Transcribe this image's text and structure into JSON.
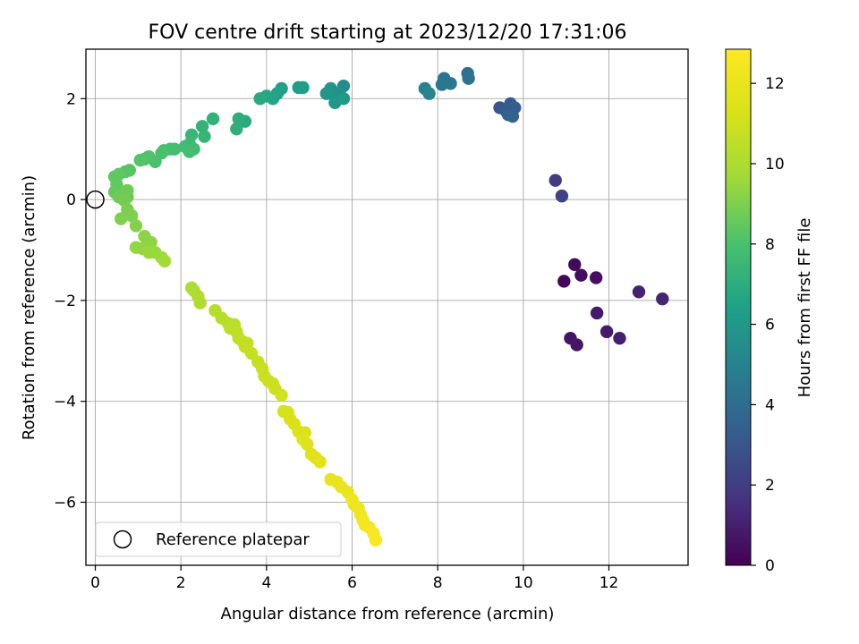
{
  "chart_data": {
    "type": "scatter",
    "title": "FOV centre drift starting at 2023/12/20 17:31:06",
    "xlabel": "Angular distance from reference (arcmin)",
    "ylabel": "Rotation from reference (arcmin)",
    "xlim": [
      -0.22,
      13.85
    ],
    "ylim": [
      -7.25,
      2.98
    ],
    "x_ticks": [
      0,
      2,
      4,
      6,
      8,
      10,
      12
    ],
    "y_ticks": [
      -6,
      -4,
      -2,
      0,
      2
    ],
    "x_tick_labels": [
      "0",
      "2",
      "4",
      "6",
      "8",
      "10",
      "12"
    ],
    "y_tick_labels": [
      "−6",
      "−4",
      "−2",
      "0",
      "2"
    ],
    "grid": true,
    "colorbar": {
      "label": "Hours from first FF file",
      "min": 0,
      "max": 12.85,
      "ticks": [
        0,
        2,
        4,
        6,
        8,
        10,
        12
      ],
      "tick_labels": [
        "0",
        "2",
        "4",
        "6",
        "8",
        "10",
        "12"
      ],
      "colormap": "viridis"
    },
    "legend": {
      "placement": "lower-left",
      "entries": [
        {
          "label": "Reference platepar",
          "marker": "open-circle"
        }
      ]
    },
    "reference_point": {
      "x": 0,
      "y": 0
    },
    "points": [
      [
        11.2,
        -1.29,
        0.3
      ],
      [
        10.95,
        -1.62,
        0.2
      ],
      [
        11.35,
        -1.5,
        0.4
      ],
      [
        11.7,
        -1.55,
        0.5
      ],
      [
        11.1,
        -2.75,
        0.6
      ],
      [
        11.25,
        -2.88,
        0.7
      ],
      [
        11.72,
        -2.25,
        0.8
      ],
      [
        11.95,
        -2.62,
        0.9
      ],
      [
        12.25,
        -2.75,
        1.0
      ],
      [
        12.7,
        -1.83,
        1.1
      ],
      [
        13.25,
        -1.97,
        1.2
      ],
      [
        10.75,
        0.38,
        2.0
      ],
      [
        10.9,
        0.07,
        2.2
      ],
      [
        9.45,
        1.82,
        3.0
      ],
      [
        9.6,
        1.75,
        3.1
      ],
      [
        9.7,
        1.9,
        3.2
      ],
      [
        9.8,
        1.82,
        3.3
      ],
      [
        9.65,
        1.68,
        3.4
      ],
      [
        9.75,
        1.65,
        3.5
      ],
      [
        8.7,
        2.5,
        4.1
      ],
      [
        8.72,
        2.4,
        4.2
      ],
      [
        8.15,
        2.4,
        4.3
      ],
      [
        8.3,
        2.3,
        4.4
      ],
      [
        8.1,
        2.28,
        4.5
      ],
      [
        7.7,
        2.2,
        5.0
      ],
      [
        7.8,
        2.1,
        5.1
      ],
      [
        5.8,
        2.25,
        5.5
      ],
      [
        5.7,
        2.1,
        5.6
      ],
      [
        5.55,
        2.1,
        5.7
      ],
      [
        5.5,
        2.2,
        5.8
      ],
      [
        5.4,
        2.1,
        5.9
      ],
      [
        5.6,
        1.92,
        6.0
      ],
      [
        5.8,
        2.0,
        6.1
      ],
      [
        4.75,
        2.22,
        6.2
      ],
      [
        4.85,
        2.22,
        6.3
      ],
      [
        4.35,
        2.2,
        6.4
      ],
      [
        4.25,
        2.1,
        6.5
      ],
      [
        4.15,
        2.0,
        6.6
      ],
      [
        4.0,
        2.05,
        6.7
      ],
      [
        3.85,
        2.0,
        6.8
      ],
      [
        3.5,
        1.55,
        6.9
      ],
      [
        3.35,
        1.6,
        7.0
      ],
      [
        3.3,
        1.4,
        7.1
      ],
      [
        2.75,
        1.6,
        7.2
      ],
      [
        2.5,
        1.45,
        7.3
      ],
      [
        2.55,
        1.25,
        7.4
      ],
      [
        2.25,
        1.28,
        7.5
      ],
      [
        2.2,
        1.1,
        7.6
      ],
      [
        2.3,
        1.0,
        7.7
      ],
      [
        2.1,
        1.05,
        7.7
      ],
      [
        2.2,
        0.95,
        7.8
      ],
      [
        1.85,
        1.0,
        7.8
      ],
      [
        1.75,
        1.0,
        7.9
      ],
      [
        1.6,
        0.97,
        7.9
      ],
      [
        1.55,
        0.92,
        8.0
      ],
      [
        1.4,
        0.75,
        8.0
      ],
      [
        1.25,
        0.85,
        8.1
      ],
      [
        1.15,
        0.8,
        8.1
      ],
      [
        1.05,
        0.78,
        8.2
      ],
      [
        0.8,
        0.58,
        8.3
      ],
      [
        0.7,
        0.55,
        8.3
      ],
      [
        0.55,
        0.5,
        8.4
      ],
      [
        0.45,
        0.45,
        8.4
      ],
      [
        0.5,
        0.3,
        8.5
      ],
      [
        0.45,
        0.15,
        8.5
      ],
      [
        0.6,
        0.08,
        8.6
      ],
      [
        0.75,
        0.05,
        8.6
      ],
      [
        0.75,
        0.18,
        8.7
      ],
      [
        0.55,
        0.05,
        8.7
      ],
      [
        0.68,
        -0.02,
        8.8
      ],
      [
        0.75,
        -0.2,
        8.9
      ],
      [
        0.85,
        -0.32,
        9.0
      ],
      [
        0.6,
        -0.38,
        9.0
      ],
      [
        0.95,
        -0.52,
        9.1
      ],
      [
        1.15,
        -0.73,
        9.2
      ],
      [
        1.3,
        -0.85,
        9.3
      ],
      [
        0.95,
        -0.95,
        9.4
      ],
      [
        1.1,
        -0.97,
        9.4
      ],
      [
        1.25,
        -1.05,
        9.5
      ],
      [
        1.4,
        -1.05,
        9.5
      ],
      [
        1.55,
        -1.15,
        9.6
      ],
      [
        1.62,
        -1.22,
        9.7
      ],
      [
        2.25,
        -1.75,
        10.0
      ],
      [
        2.3,
        -1.8,
        10.0
      ],
      [
        2.4,
        -1.92,
        10.1
      ],
      [
        2.45,
        -2.05,
        10.1
      ],
      [
        2.8,
        -2.2,
        10.2
      ],
      [
        2.95,
        -2.35,
        10.3
      ],
      [
        3.1,
        -2.45,
        10.3
      ],
      [
        3.25,
        -2.48,
        10.4
      ],
      [
        3.15,
        -2.55,
        10.4
      ],
      [
        3.3,
        -2.62,
        10.5
      ],
      [
        3.35,
        -2.75,
        10.5
      ],
      [
        3.45,
        -2.82,
        10.6
      ],
      [
        3.55,
        -2.85,
        10.6
      ],
      [
        3.5,
        -2.92,
        10.6
      ],
      [
        3.65,
        -3.05,
        10.7
      ],
      [
        3.8,
        -3.22,
        10.7
      ],
      [
        3.9,
        -3.35,
        10.8
      ],
      [
        3.95,
        -3.5,
        10.8
      ],
      [
        4.05,
        -3.6,
        10.9
      ],
      [
        4.15,
        -3.65,
        10.9
      ],
      [
        4.2,
        -3.75,
        10.9
      ],
      [
        4.35,
        -3.88,
        11.0
      ],
      [
        4.4,
        -4.2,
        11.2
      ],
      [
        4.5,
        -4.22,
        11.2
      ],
      [
        4.55,
        -4.35,
        11.3
      ],
      [
        4.65,
        -4.45,
        11.3
      ],
      [
        4.75,
        -4.6,
        11.4
      ],
      [
        4.9,
        -4.62,
        11.4
      ],
      [
        4.85,
        -4.75,
        11.5
      ],
      [
        4.95,
        -4.85,
        11.5
      ],
      [
        5.05,
        -5.05,
        11.6
      ],
      [
        5.15,
        -5.12,
        11.6
      ],
      [
        5.25,
        -5.2,
        11.7
      ],
      [
        5.5,
        -5.55,
        11.9
      ],
      [
        5.65,
        -5.6,
        11.9
      ],
      [
        5.75,
        -5.7,
        12.0
      ],
      [
        5.9,
        -5.8,
        12.0
      ],
      [
        6.0,
        -5.95,
        12.1
      ],
      [
        6.05,
        -6.05,
        12.2
      ],
      [
        6.15,
        -6.12,
        12.3
      ],
      [
        6.2,
        -6.25,
        12.3
      ],
      [
        6.25,
        -6.35,
        12.4
      ],
      [
        6.3,
        -6.45,
        12.4
      ],
      [
        6.4,
        -6.5,
        12.5
      ],
      [
        6.5,
        -6.62,
        12.6
      ],
      [
        6.55,
        -6.75,
        12.7
      ]
    ]
  }
}
